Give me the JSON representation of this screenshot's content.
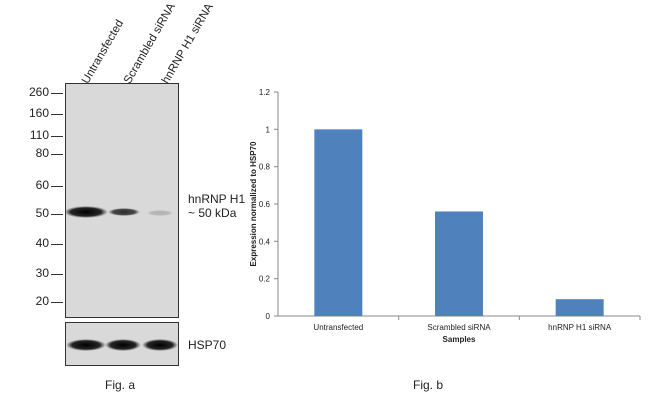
{
  "fig_a": {
    "lanes": [
      "Untransfected",
      "Scrambled siRNA",
      "hnRNP H1 siRNA"
    ],
    "markers": [
      "260",
      "160",
      "110",
      "80",
      "60",
      "50",
      "40",
      "30",
      "20"
    ],
    "band_label_line1": "hnRNP H1",
    "band_label_line2": "~ 50 kDa",
    "loading_control": "HSP70",
    "caption": "Fig. a",
    "band_intensity": [
      1.0,
      0.55,
      0.1
    ]
  },
  "chart_data": {
    "type": "bar",
    "categories": [
      "Untransfected",
      "Scrambled siRNA",
      "hnRNP H1 siRNA"
    ],
    "values": [
      1.0,
      0.56,
      0.09
    ],
    "xlabel": "Samples",
    "ylabel": "Expression normalized to HSP70",
    "ylim": [
      0,
      1.2
    ],
    "yticks": [
      "0",
      "0.2",
      "0.4",
      "0.6",
      "0.8",
      "1",
      "1.2"
    ],
    "bar_color": "#4f81bd",
    "caption": "Fig. b"
  }
}
